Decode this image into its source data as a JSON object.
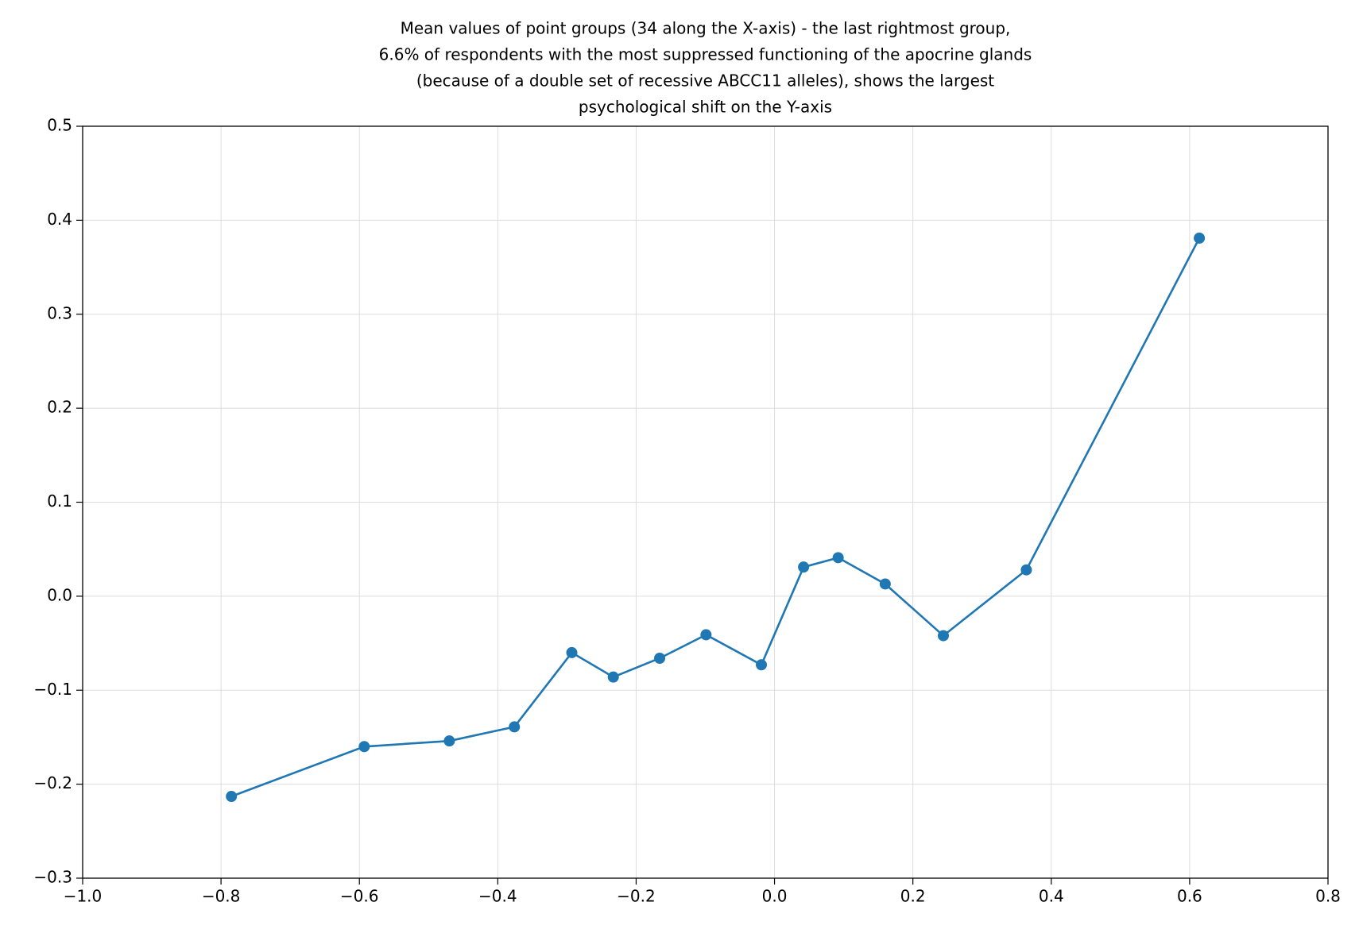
{
  "chart_data": {
    "type": "line",
    "title": [
      "Mean values of point groups (34 along the X-axis) - the last rightmost group,",
      "6.6% of respondents with the most suppressed functioning of the apocrine glands",
      "(because of a double set of recessive ABCC11 alleles), shows the largest",
      "psychological shift on the Y-axis"
    ],
    "series": [
      {
        "color": "#1f77b4",
        "x": [
          -0.785,
          -0.593,
          -0.47,
          -0.376,
          -0.293,
          -0.233,
          -0.166,
          -0.099,
          -0.019,
          0.042,
          0.092,
          0.16,
          0.244,
          0.364,
          0.614
        ],
        "values": [
          -0.213,
          -0.16,
          -0.154,
          -0.139,
          -0.06,
          -0.086,
          -0.066,
          -0.041,
          -0.073,
          0.031,
          0.041,
          0.013,
          -0.042,
          0.028,
          0.381
        ]
      }
    ],
    "xlim": [
      -1.0,
      0.8
    ],
    "xticks": [
      {
        "value": -1.0,
        "label": "−1.0"
      },
      {
        "value": -0.8,
        "label": "−0.8"
      },
      {
        "value": -0.6,
        "label": "−0.6"
      },
      {
        "value": -0.4,
        "label": "−0.4"
      },
      {
        "value": -0.2,
        "label": "−0.2"
      },
      {
        "value": 0,
        "label": "0.0"
      },
      0.2,
      0.4,
      0.6,
      0.8
    ],
    "ylim": [
      -0.3,
      0.5
    ],
    "yticks": [
      {
        "value": -0.3,
        "label": "−0.3"
      },
      {
        "value": -0.2,
        "label": "−0.2"
      },
      {
        "value": -0.1,
        "label": "−0.1"
      },
      {
        "value": 0,
        "label": "0.0"
      },
      0.1,
      0.2,
      0.3,
      0.4,
      0.5
    ],
    "grid": true
  }
}
